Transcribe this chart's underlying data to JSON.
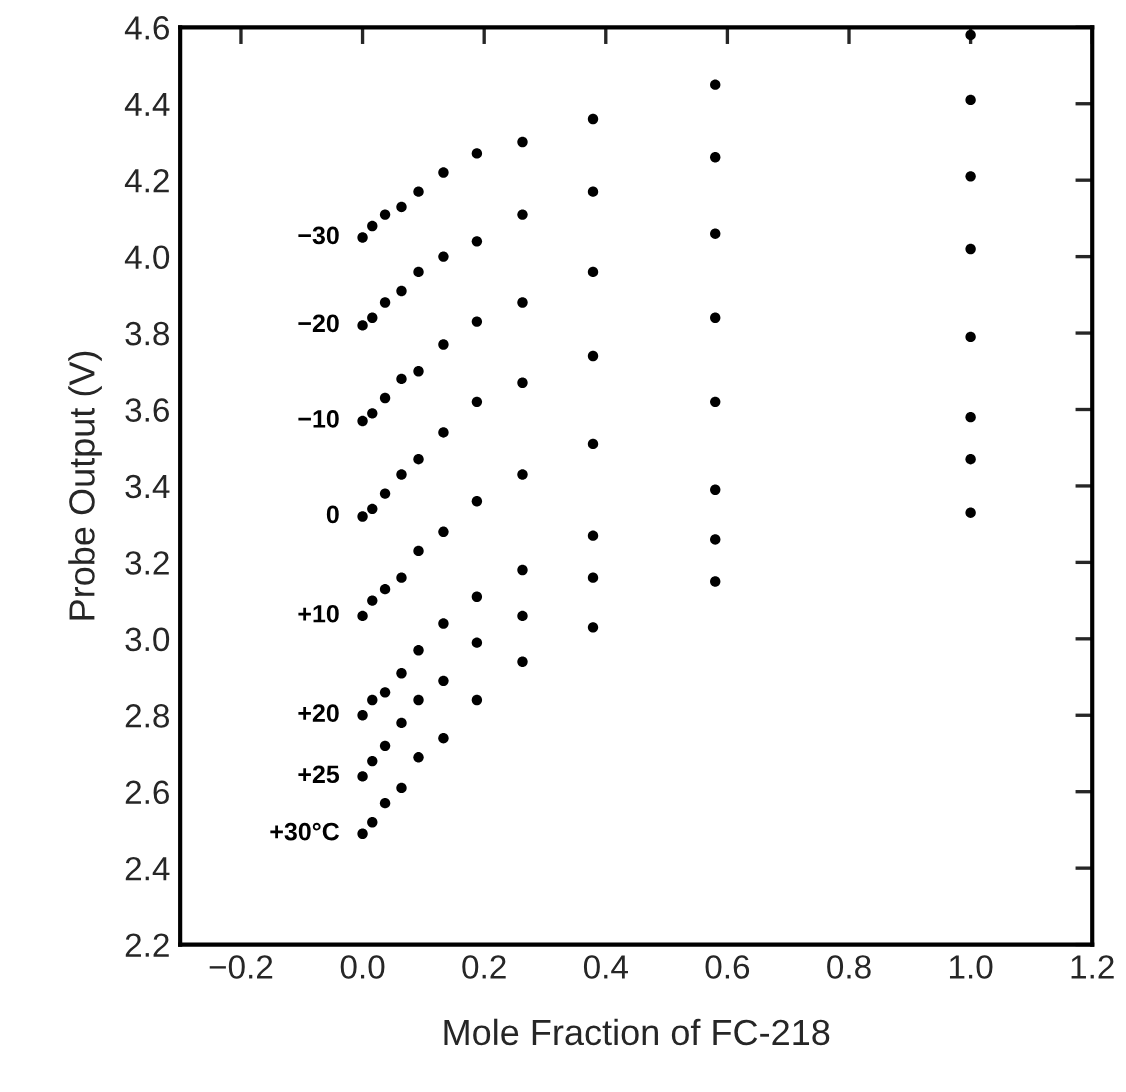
{
  "chart_data": {
    "type": "scatter",
    "xlabel": "Mole Fraction of FC-218",
    "ylabel": "Probe Output (V)",
    "x": [
      0,
      0.016,
      0.037,
      0.064,
      0.092,
      0.133,
      0.188,
      0.263,
      0.379,
      0.58,
      1.0
    ],
    "series": [
      {
        "name": "−30",
        "color": "#000000",
        "values": [
          4.05,
          4.08,
          4.11,
          4.13,
          4.17,
          4.22,
          4.27,
          4.3,
          4.36,
          4.45,
          4.58
        ]
      },
      {
        "name": "−20",
        "color": "#000000",
        "values": [
          3.82,
          3.84,
          3.88,
          3.91,
          3.96,
          4.0,
          4.04,
          4.11,
          4.17,
          4.26,
          4.41
        ]
      },
      {
        "name": "−10",
        "color": "#000000",
        "values": [
          3.57,
          3.59,
          3.63,
          3.68,
          3.7,
          3.77,
          3.83,
          3.88,
          3.96,
          4.06,
          4.21
        ]
      },
      {
        "name": "0",
        "color": "#000000",
        "values": [
          3.32,
          3.34,
          3.38,
          3.43,
          3.47,
          3.54,
          3.62,
          3.67,
          3.74,
          3.84,
          4.02
        ]
      },
      {
        "name": "+10",
        "color": "#000000",
        "values": [
          3.06,
          3.1,
          3.13,
          3.16,
          3.23,
          3.28,
          3.36,
          3.43,
          3.51,
          3.62,
          3.79
        ]
      },
      {
        "name": "+20",
        "color": "#000000",
        "values": [
          2.8,
          2.84,
          2.86,
          2.91,
          2.97,
          3.04,
          3.11,
          3.18,
          3.27,
          3.39,
          3.58
        ]
      },
      {
        "name": "+25",
        "color": "#000000",
        "values": [
          2.64,
          2.68,
          2.72,
          2.78,
          2.84,
          2.89,
          2.99,
          3.06,
          3.16,
          3.26,
          3.47
        ]
      },
      {
        "name": "+30°C",
        "color": "#000000",
        "values": [
          2.49,
          2.52,
          2.57,
          2.61,
          2.69,
          2.74,
          2.84,
          2.94,
          3.03,
          3.15,
          3.33
        ]
      }
    ],
    "xlim": [
      -0.3,
      1.2
    ],
    "xticks": [
      {
        "value": -0.2,
        "label": "−0.2"
      },
      {
        "value": 0.0,
        "label": "0.0"
      },
      {
        "value": 0.2,
        "label": "0.2"
      },
      {
        "value": 0.4,
        "label": "0.4"
      },
      {
        "value": 0.6,
        "label": "0.6"
      },
      {
        "value": 0.8,
        "label": "0.8"
      },
      {
        "value": 1.0,
        "label": "1.0"
      },
      {
        "value": 1.2,
        "label": "1.2"
      }
    ],
    "ylim": [
      2.2,
      4.6
    ],
    "yticks": [
      {
        "value": 2.2,
        "label": "2.2"
      },
      {
        "value": 2.4,
        "label": "2.4"
      },
      {
        "value": 2.6,
        "label": "2.6"
      },
      {
        "value": 2.8,
        "label": "2.8"
      },
      {
        "value": 3.0,
        "label": "3.0"
      },
      {
        "value": 3.2,
        "label": "3.2"
      },
      {
        "value": 3.4,
        "label": "3.4"
      },
      {
        "value": 3.6,
        "label": "3.6"
      },
      {
        "value": 3.8,
        "label": "3.8"
      },
      {
        "value": 4.0,
        "label": "4.0"
      },
      {
        "value": 4.2,
        "label": "4.2"
      },
      {
        "value": 4.4,
        "label": "4.4"
      },
      {
        "value": 4.6,
        "label": "4.6"
      }
    ],
    "marker": "circle",
    "grid": false,
    "legend": false
  }
}
